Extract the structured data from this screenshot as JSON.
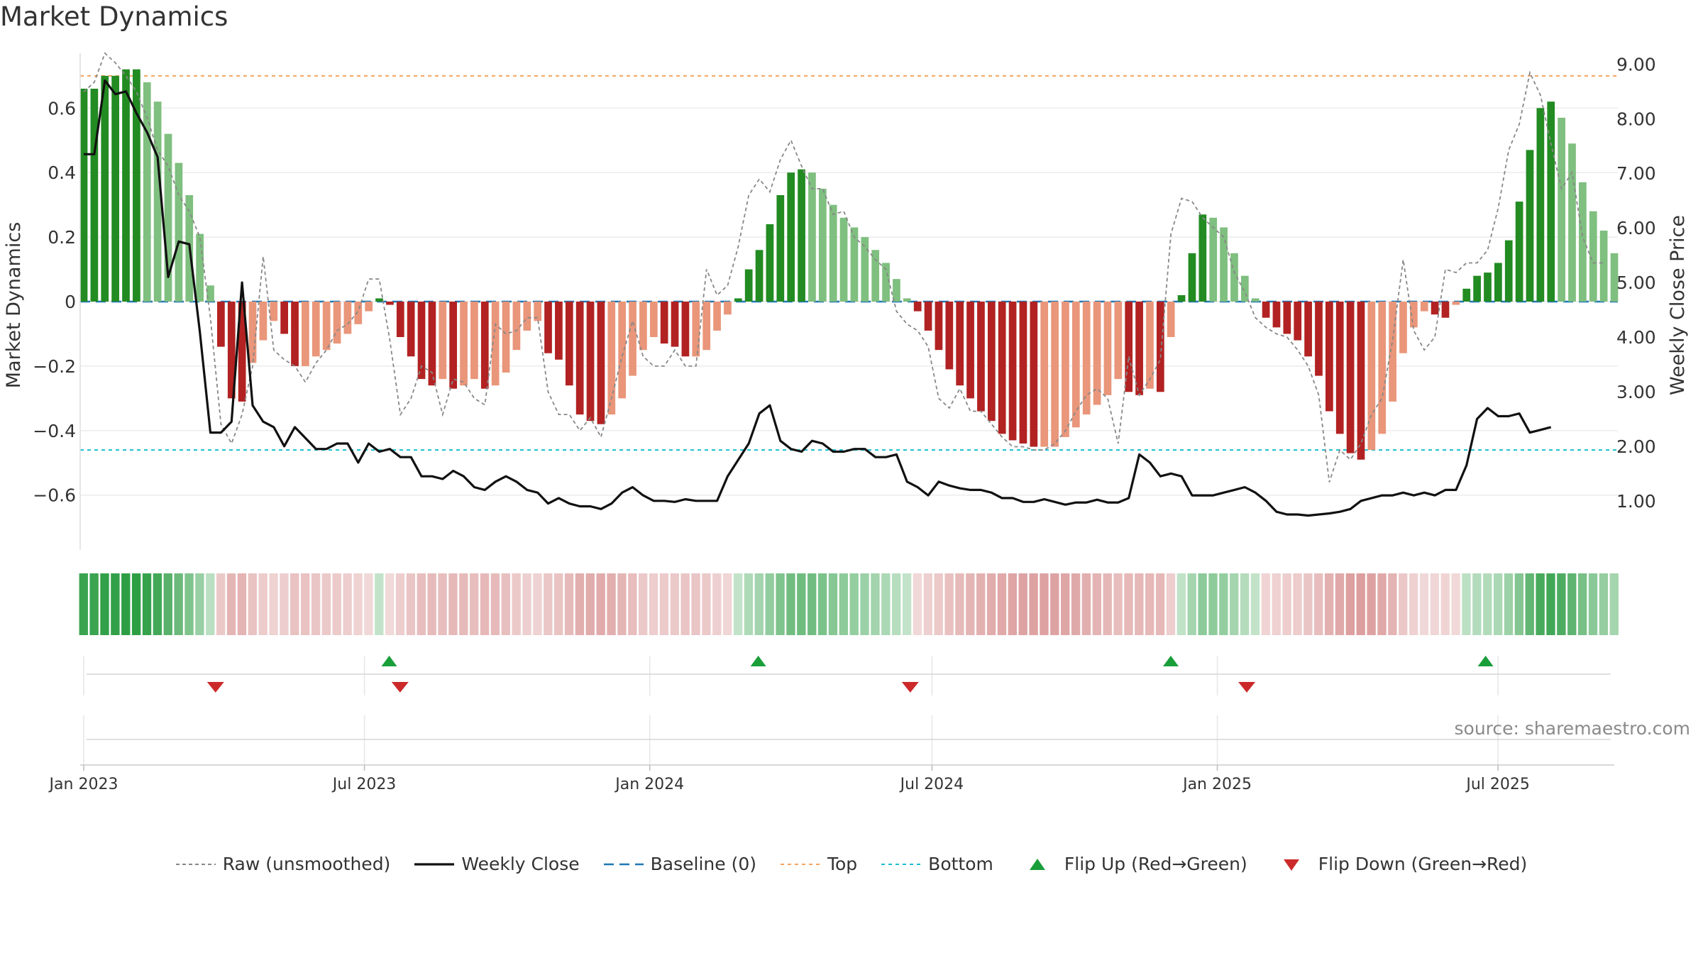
{
  "title": "Market Dynamics",
  "source": "source: sharemaestro.com",
  "colors": {
    "strong_green": "#228B22",
    "light_green": "#7fbf7f",
    "strong_red": "#b22222",
    "light_red": "#e9967a",
    "top_line": "#f4a460",
    "bottom_line": "#17becf",
    "baseline": "#1f77b4",
    "raw": "#888888",
    "close": "#111111",
    "flip_up": "#1a9e3a",
    "flip_down": "#cc2a2a"
  },
  "legend": [
    {
      "key": "raw",
      "label": "Raw (unsmoothed)"
    },
    {
      "key": "close",
      "label": "Weekly Close"
    },
    {
      "key": "baseline",
      "label": "Baseline (0)"
    },
    {
      "key": "top",
      "label": "Top"
    },
    {
      "key": "bottom",
      "label": "Bottom"
    },
    {
      "key": "flip_up",
      "label": "Flip Up (Red→Green)"
    },
    {
      "key": "flip_down",
      "label": "Flip Down (Green→Red)"
    }
  ],
  "chart_data": {
    "type": "bar",
    "ylabel": "Market Dynamics",
    "y2label": "Weekly Close Price",
    "ylim": [
      -0.77,
      0.77
    ],
    "y2lim": [
      0.1,
      9.2
    ],
    "yticks": [
      0.6,
      0.4,
      0.2,
      0,
      -0.2,
      -0.4,
      -0.6
    ],
    "ytick_labels": [
      "0.6",
      "0.4",
      "0.2",
      "0",
      "−0.2",
      "−0.4",
      "−0.6"
    ],
    "y2ticks": [
      9,
      8,
      7,
      6,
      5,
      4,
      3,
      2,
      1
    ],
    "y2tick_labels": [
      "9.00",
      "8.00",
      "7.00",
      "6.00",
      "5.00",
      "4.00",
      "3.00",
      "2.00",
      "1.00"
    ],
    "x_start": "2023-01-01",
    "x_end": "2025-09-14",
    "xtick_dates": [
      "2023-01-01",
      "2023-07-01",
      "2024-01-01",
      "2024-07-01",
      "2025-01-01",
      "2025-07-01"
    ],
    "xtick_labels": [
      "Jan 2023",
      "Jul 2023",
      "Jan 2024",
      "Jul 2024",
      "Jan 2025",
      "Jul 2025"
    ],
    "top_level": 0.7,
    "bottom_level": -0.46,
    "baseline": 0,
    "grid": true,
    "legend_position": "bottom-center",
    "bars": [
      0.66,
      0.66,
      0.7,
      0.7,
      0.72,
      0.72,
      0.68,
      0.62,
      0.52,
      0.43,
      0.33,
      0.21,
      0.05,
      -0.14,
      -0.3,
      -0.31,
      -0.19,
      -0.12,
      -0.06,
      -0.1,
      -0.2,
      -0.2,
      -0.17,
      -0.15,
      -0.13,
      -0.1,
      -0.07,
      -0.03,
      0.01,
      -0.01,
      -0.11,
      -0.17,
      -0.24,
      -0.26,
      -0.24,
      -0.27,
      -0.26,
      -0.24,
      -0.27,
      -0.26,
      -0.22,
      -0.15,
      -0.09,
      -0.06,
      -0.16,
      -0.18,
      -0.26,
      -0.35,
      -0.37,
      -0.38,
      -0.35,
      -0.3,
      -0.23,
      -0.15,
      -0.11,
      -0.13,
      -0.14,
      -0.17,
      -0.17,
      -0.15,
      -0.09,
      -0.04,
      0.01,
      0.1,
      0.16,
      0.24,
      0.33,
      0.4,
      0.41,
      0.4,
      0.35,
      0.3,
      0.26,
      0.23,
      0.2,
      0.16,
      0.12,
      0.07,
      0.01,
      -0.03,
      -0.09,
      -0.15,
      -0.21,
      -0.26,
      -0.3,
      -0.34,
      -0.37,
      -0.41,
      -0.43,
      -0.44,
      -0.45,
      -0.45,
      -0.45,
      -0.42,
      -0.39,
      -0.35,
      -0.32,
      -0.29,
      -0.24,
      -0.28,
      -0.29,
      -0.27,
      -0.28,
      -0.11,
      0.02,
      0.15,
      0.27,
      0.26,
      0.23,
      0.15,
      0.08,
      0.01,
      -0.05,
      -0.08,
      -0.1,
      -0.12,
      -0.17,
      -0.23,
      -0.34,
      -0.41,
      -0.47,
      -0.49,
      -0.46,
      -0.41,
      -0.31,
      -0.16,
      -0.08,
      -0.03,
      -0.04,
      -0.05,
      -0.01,
      0.04,
      0.08,
      0.09,
      0.12,
      0.19,
      0.31,
      0.47,
      0.6,
      0.62,
      0.57,
      0.49,
      0.37,
      0.28,
      0.22,
      0.15
    ],
    "raw": [
      0.65,
      0.68,
      0.77,
      0.74,
      0.7,
      0.65,
      0.57,
      0.47,
      0.42,
      0.33,
      0.28,
      0.2,
      -0.05,
      -0.38,
      -0.44,
      -0.35,
      -0.2,
      0.14,
      -0.15,
      -0.18,
      -0.2,
      -0.25,
      -0.19,
      -0.15,
      -0.09,
      -0.07,
      -0.03,
      0.07,
      0.07,
      -0.12,
      -0.35,
      -0.3,
      -0.2,
      -0.22,
      -0.35,
      -0.24,
      -0.25,
      -0.3,
      -0.32,
      -0.07,
      -0.1,
      -0.09,
      -0.05,
      -0.05,
      -0.28,
      -0.35,
      -0.35,
      -0.4,
      -0.36,
      -0.42,
      -0.3,
      -0.17,
      -0.06,
      -0.17,
      -0.2,
      -0.2,
      -0.15,
      -0.2,
      -0.2,
      0.1,
      0.02,
      0.05,
      0.17,
      0.33,
      0.38,
      0.34,
      0.44,
      0.5,
      0.42,
      0.35,
      0.35,
      0.27,
      0.28,
      0.2,
      0.17,
      0.13,
      0.1,
      -0.03,
      -0.07,
      -0.09,
      -0.14,
      -0.3,
      -0.33,
      -0.27,
      -0.34,
      -0.34,
      -0.38,
      -0.42,
      -0.45,
      -0.45,
      -0.46,
      -0.46,
      -0.44,
      -0.4,
      -0.34,
      -0.29,
      -0.27,
      -0.3,
      -0.44,
      -0.17,
      -0.29,
      -0.24,
      -0.18,
      0.21,
      0.32,
      0.31,
      0.26,
      0.23,
      0.2,
      0.09,
      0.03,
      -0.05,
      -0.08,
      -0.1,
      -0.11,
      -0.15,
      -0.2,
      -0.29,
      -0.56,
      -0.46,
      -0.49,
      -0.44,
      -0.35,
      -0.3,
      -0.12,
      0.13,
      -0.09,
      -0.15,
      -0.11,
      0.1,
      0.09,
      0.12,
      0.12,
      0.16,
      0.29,
      0.47,
      0.55,
      0.71,
      0.64,
      0.49,
      0.35,
      0.4,
      0.2,
      0.12,
      0.12
    ],
    "close": [
      7.35,
      7.35,
      8.7,
      8.45,
      8.5,
      8.1,
      7.75,
      7.3,
      5.1,
      5.75,
      5.7,
      4.1,
      2.25,
      2.25,
      2.45,
      5.0,
      2.75,
      2.45,
      2.35,
      2.0,
      2.35,
      2.15,
      1.95,
      1.95,
      2.05,
      2.05,
      1.7,
      2.05,
      1.9,
      1.95,
      1.8,
      1.8,
      1.45,
      1.45,
      1.4,
      1.55,
      1.45,
      1.25,
      1.2,
      1.35,
      1.45,
      1.35,
      1.2,
      1.15,
      0.95,
      1.05,
      0.95,
      0.9,
      0.9,
      0.85,
      0.95,
      1.15,
      1.25,
      1.1,
      1.0,
      1.0,
      0.98,
      1.03,
      1.0,
      1.0,
      1.0,
      1.45,
      1.75,
      2.05,
      2.6,
      2.75,
      2.1,
      1.95,
      1.9,
      2.1,
      2.05,
      1.9,
      1.9,
      1.95,
      1.95,
      1.8,
      1.8,
      1.85,
      1.35,
      1.25,
      1.1,
      1.35,
      1.28,
      1.23,
      1.2,
      1.2,
      1.15,
      1.05,
      1.05,
      0.98,
      0.98,
      1.03,
      0.98,
      0.93,
      0.97,
      0.97,
      1.02,
      0.97,
      0.97,
      1.05,
      1.85,
      1.7,
      1.45,
      1.5,
      1.45,
      1.1,
      1.1,
      1.1,
      1.15,
      1.2,
      1.25,
      1.15,
      1.0,
      0.8,
      0.75,
      0.75,
      0.73,
      0.75,
      0.77,
      0.8,
      0.85,
      1.0,
      1.05,
      1.1,
      1.1,
      1.15,
      1.1,
      1.15,
      1.1,
      1.2,
      1.2,
      1.65,
      2.5,
      2.7,
      2.55,
      2.55,
      2.6,
      2.25,
      2.3,
      2.35
    ],
    "flips_up": [
      "2023-07-17",
      "2024-03-11",
      "2024-12-02",
      "2025-06-23"
    ],
    "flips_down": [
      "2023-03-27",
      "2023-07-24",
      "2024-06-17",
      "2025-01-20"
    ]
  }
}
